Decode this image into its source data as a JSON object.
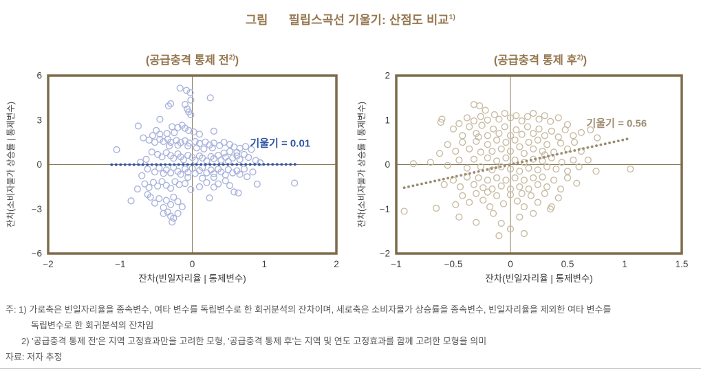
{
  "colors": {
    "title_brown": "#96774f",
    "frame": "#7d6b4a",
    "axis_line": "#8a795a",
    "tick_text": "#3d3d3d",
    "note_text": "#595959",
    "left_marker": "#aab3dc",
    "left_trend": "#2e54a6",
    "right_marker": "#c7bba3",
    "right_trend": "#9c8d72",
    "bottom_rule": "#c9c9c9"
  },
  "title": {
    "prefix": "그림",
    "text": "필립스곡선 기울기: 산점도 비교",
    "sup": "1)"
  },
  "notes": {
    "line1": "주: 1) 가로축은 빈일자리율을 종속변수, 여타 변수를 독립변수로 한 회귀분석의 잔차이며, 세로축은 소비자물가 상승률을 종속변수, 빈일자리율을 제외한 여타 변수를",
    "line2": "독립변수로 한 회귀분석의 잔차임",
    "line3": "2) '공급충격 통제 전'은 지역 고정효과만을 고려한 모형, '공급충격 통제 후'는 지역 및 연도 고정효과를 함께 고려한 모형을 의미",
    "line4": "자료: 저자 추정"
  },
  "chart_data": [
    {
      "type": "scatter",
      "title_parts": {
        "pre": "(공급충격 통제 전",
        "sup": "2)",
        "post": ")"
      },
      "xlabel": "잔차(빈일자리율 | 통제변수)",
      "ylabel": "잔차(소비자물가 상승률 | 통제변수)",
      "xlim": [
        -2,
        2
      ],
      "ylim": [
        -6,
        6
      ],
      "xticks": [
        [
          -2,
          "−2"
        ],
        [
          -1,
          "−1"
        ],
        [
          0,
          "0"
        ],
        [
          1,
          "1"
        ],
        [
          2,
          "2"
        ]
      ],
      "yticks": [
        [
          6,
          "6"
        ],
        [
          3,
          "3"
        ],
        [
          0,
          "0"
        ],
        [
          -3,
          "−3"
        ],
        [
          -6,
          "−6"
        ]
      ],
      "grid": false,
      "legend": null,
      "marker_color": "#aab3dc",
      "trendline": {
        "slope": 0.01,
        "slope_label": "기울기 = 0.01",
        "color": "#2e54a6",
        "x1": -1.12,
        "y1": -0.011,
        "x2": 1.43,
        "y2": 0.014,
        "label_x": 1.22,
        "label_y": 1.2
      },
      "points": [
        [
          -0.17,
          5.15
        ],
        [
          -0.08,
          5.0
        ],
        [
          -0.03,
          4.85
        ],
        [
          0.25,
          4.5
        ],
        [
          -0.02,
          4.35
        ],
        [
          -0.3,
          4.1
        ],
        [
          -0.33,
          3.95
        ],
        [
          -0.1,
          4.05
        ],
        [
          -0.07,
          3.75
        ],
        [
          -0.05,
          3.55
        ],
        [
          -0.02,
          3.35
        ],
        [
          -0.45,
          3.05
        ],
        [
          -0.75,
          2.6
        ],
        [
          -0.5,
          2.3
        ],
        [
          -0.28,
          2.55
        ],
        [
          -0.2,
          2.5
        ],
        [
          -0.14,
          2.65
        ],
        [
          -0.1,
          2.45
        ],
        [
          -0.05,
          2.3
        ],
        [
          0.02,
          2.2
        ],
        [
          0.3,
          2.25
        ],
        [
          -0.35,
          2.1
        ],
        [
          -0.45,
          2.05
        ],
        [
          -0.55,
          1.95
        ],
        [
          0.1,
          2.05
        ],
        [
          -0.25,
          2.15
        ],
        [
          -1.05,
          1.0
        ],
        [
          -0.68,
          1.8
        ],
        [
          -0.6,
          1.65
        ],
        [
          -0.52,
          1.5
        ],
        [
          -0.45,
          1.7
        ],
        [
          -0.4,
          1.55
        ],
        [
          -0.34,
          1.7
        ],
        [
          -0.3,
          1.5
        ],
        [
          -0.22,
          1.62
        ],
        [
          -0.16,
          1.48
        ],
        [
          -0.1,
          1.6
        ],
        [
          -0.04,
          1.45
        ],
        [
          0.04,
          1.55
        ],
        [
          0.1,
          1.42
        ],
        [
          0.18,
          1.52
        ],
        [
          0.24,
          1.32
        ],
        [
          0.3,
          1.45
        ],
        [
          0.38,
          1.28
        ],
        [
          0.44,
          1.5
        ],
        [
          0.52,
          1.35
        ],
        [
          0.58,
          1.18
        ],
        [
          0.66,
          1.1
        ],
        [
          0.74,
          1.22
        ],
        [
          0.82,
          1.02
        ],
        [
          -0.06,
          1.25
        ],
        [
          0.06,
          1.12
        ],
        [
          0.16,
          1.05
        ],
        [
          0.28,
          1.12
        ],
        [
          -0.2,
          1.3
        ],
        [
          -0.32,
          1.25
        ],
        [
          -0.56,
          0.85
        ],
        [
          -0.48,
          0.68
        ],
        [
          -0.42,
          0.52
        ],
        [
          -0.36,
          0.8
        ],
        [
          -0.3,
          0.6
        ],
        [
          -0.26,
          0.42
        ],
        [
          -0.2,
          0.72
        ],
        [
          -0.16,
          0.52
        ],
        [
          -0.12,
          0.32
        ],
        [
          -0.06,
          0.62
        ],
        [
          0.0,
          0.48
        ],
        [
          0.04,
          0.28
        ],
        [
          0.1,
          0.58
        ],
        [
          0.14,
          0.44
        ],
        [
          0.2,
          0.24
        ],
        [
          0.26,
          0.54
        ],
        [
          0.3,
          0.4
        ],
        [
          0.36,
          0.62
        ],
        [
          0.4,
          0.3
        ],
        [
          0.46,
          0.5
        ],
        [
          0.5,
          0.22
        ],
        [
          0.56,
          0.44
        ],
        [
          0.62,
          0.58
        ],
        [
          0.66,
          0.34
        ],
        [
          0.44,
          0.78
        ],
        [
          0.52,
          0.88
        ],
        [
          0.62,
          0.82
        ],
        [
          0.72,
          0.68
        ],
        [
          0.78,
          0.48
        ],
        [
          0.88,
          0.28
        ],
        [
          -0.64,
          0.35
        ],
        [
          -0.72,
          0.15
        ],
        [
          0.94,
          0.12
        ],
        [
          -0.62,
          -0.3
        ],
        [
          -0.52,
          -0.5
        ],
        [
          -0.46,
          -0.24
        ],
        [
          -0.4,
          -0.6
        ],
        [
          -0.36,
          -0.36
        ],
        [
          -0.3,
          -0.56
        ],
        [
          -0.26,
          -0.2
        ],
        [
          -0.2,
          -0.46
        ],
        [
          -0.16,
          -0.66
        ],
        [
          -0.1,
          -0.3
        ],
        [
          -0.06,
          -0.52
        ],
        [
          0.0,
          -0.26
        ],
        [
          0.04,
          -0.6
        ],
        [
          0.1,
          -0.4
        ],
        [
          0.14,
          -0.2
        ],
        [
          0.2,
          -0.56
        ],
        [
          0.26,
          -0.36
        ],
        [
          0.3,
          -0.62
        ],
        [
          0.36,
          -0.3
        ],
        [
          0.4,
          -0.5
        ],
        [
          0.46,
          -0.7
        ],
        [
          0.5,
          -0.34
        ],
        [
          0.56,
          -0.56
        ],
        [
          0.62,
          -0.42
        ],
        [
          0.66,
          -0.66
        ],
        [
          0.72,
          -0.3
        ],
        [
          0.76,
          -0.82
        ],
        [
          0.3,
          -0.86
        ],
        [
          0.14,
          -0.92
        ],
        [
          -0.06,
          -0.86
        ],
        [
          0.84,
          -0.5
        ],
        [
          -0.7,
          -0.75
        ],
        [
          -0.66,
          -1.3
        ],
        [
          -0.6,
          -1.55
        ],
        [
          -0.54,
          -1.2
        ],
        [
          -0.48,
          -1.45
        ],
        [
          -0.42,
          -1.15
        ],
        [
          -0.36,
          -1.4
        ],
        [
          -0.3,
          -1.6
        ],
        [
          -0.24,
          -1.15
        ],
        [
          -0.18,
          -1.35
        ],
        [
          -0.1,
          -1.28
        ],
        [
          -0.02,
          -1.68
        ],
        [
          0.1,
          -1.5
        ],
        [
          0.2,
          -1.22
        ],
        [
          0.3,
          -1.52
        ],
        [
          0.36,
          -1.3
        ],
        [
          0.46,
          -1.1
        ],
        [
          0.52,
          -1.42
        ],
        [
          0.58,
          -1.85
        ],
        [
          0.64,
          -1.92
        ],
        [
          0.9,
          -1.32
        ],
        [
          1.42,
          -1.25
        ],
        [
          -0.76,
          -1.65
        ],
        [
          -0.85,
          -2.45
        ],
        [
          -0.58,
          -2.2
        ],
        [
          -0.52,
          -2.6
        ],
        [
          -0.46,
          -2.3
        ],
        [
          -0.4,
          -2.9
        ],
        [
          -0.36,
          -2.42
        ],
        [
          -0.3,
          -2.7
        ],
        [
          -0.26,
          -2.2
        ],
        [
          -0.2,
          -2.5
        ],
        [
          -0.14,
          -2.85
        ],
        [
          0.24,
          -2.25
        ],
        [
          -0.62,
          -2.02
        ],
        [
          -0.4,
          -3.3
        ],
        [
          -0.34,
          -3.2
        ],
        [
          -0.3,
          -3.48
        ],
        [
          -0.26,
          -3.62
        ],
        [
          -0.28,
          -3.88
        ],
        [
          -0.2,
          -3.3
        ]
      ]
    },
    {
      "type": "scatter",
      "title_parts": {
        "pre": "(공급충격 통제 후",
        "sup": "2)",
        "post": ")"
      },
      "xlabel": "잔차(빈일자리율 | 통제변수)",
      "ylabel": "잔차(소비자물가 상승률 | 통제변수)",
      "xlim": [
        -1,
        1.5
      ],
      "ylim": [
        -2,
        2
      ],
      "xticks": [
        [
          -1,
          "−1"
        ],
        [
          -0.5,
          "−0.5"
        ],
        [
          0,
          "0"
        ],
        [
          0.5,
          "0.5"
        ],
        [
          1,
          "1"
        ],
        [
          1.5,
          "1.5"
        ]
      ],
      "yticks": [
        [
          2,
          "2"
        ],
        [
          1,
          "1"
        ],
        [
          0,
          "0"
        ],
        [
          -1,
          "−1"
        ],
        [
          -2,
          "−2"
        ]
      ],
      "grid": false,
      "legend": null,
      "marker_color": "#c7bba3",
      "trendline": {
        "slope": 0.56,
        "slope_label": "기울기 = 0.56",
        "color": "#9c8d72",
        "x1": -0.93,
        "y1": -0.52,
        "x2": 1.05,
        "y2": 0.59,
        "label_x": 0.93,
        "label_y": 0.85
      },
      "points": [
        [
          -0.32,
          1.35
        ],
        [
          -0.27,
          1.32
        ],
        [
          -0.22,
          1.22
        ],
        [
          -0.6,
          1.02
        ],
        [
          -0.61,
          0.95
        ],
        [
          -0.38,
          1.05
        ],
        [
          -0.32,
          0.98
        ],
        [
          -0.26,
          1.08
        ],
        [
          -0.2,
          1.0
        ],
        [
          -0.14,
          1.12
        ],
        [
          -0.1,
          1.02
        ],
        [
          -0.05,
          1.15
        ],
        [
          0.0,
          1.05
        ],
        [
          0.05,
          1.1
        ],
        [
          0.1,
          0.98
        ],
        [
          0.15,
          1.08
        ],
        [
          0.2,
          1.15
        ],
        [
          0.25,
          1.02
        ],
        [
          0.3,
          1.1
        ],
        [
          0.35,
          0.97
        ],
        [
          0.42,
          1.05
        ],
        [
          -0.45,
          0.92
        ],
        [
          0.5,
          0.9
        ],
        [
          -0.5,
          0.8
        ],
        [
          -0.42,
          0.65
        ],
        [
          -0.36,
          0.85
        ],
        [
          -0.3,
          0.7
        ],
        [
          -0.25,
          0.88
        ],
        [
          -0.2,
          0.65
        ],
        [
          -0.15,
          0.8
        ],
        [
          -0.1,
          0.7
        ],
        [
          -0.05,
          0.85
        ],
        [
          0.0,
          0.65
        ],
        [
          0.05,
          0.78
        ],
        [
          0.1,
          0.68
        ],
        [
          0.15,
          0.85
        ],
        [
          0.2,
          0.7
        ],
        [
          0.25,
          0.8
        ],
        [
          0.3,
          0.65
        ],
        [
          0.36,
          0.75
        ],
        [
          0.42,
          0.62
        ],
        [
          0.48,
          0.78
        ],
        [
          0.55,
          0.65
        ],
        [
          0.62,
          0.72
        ],
        [
          0.7,
          0.78
        ],
        [
          -0.28,
          0.62
        ],
        [
          0.76,
          0.6
        ],
        [
          -0.55,
          0.45
        ],
        [
          -0.48,
          0.3
        ],
        [
          -0.42,
          0.5
        ],
        [
          -0.36,
          0.35
        ],
        [
          -0.3,
          0.52
        ],
        [
          -0.26,
          0.28
        ],
        [
          -0.2,
          0.45
        ],
        [
          -0.16,
          0.3
        ],
        [
          -0.12,
          0.55
        ],
        [
          -0.08,
          0.35
        ],
        [
          -0.04,
          0.5
        ],
        [
          0.0,
          0.3
        ],
        [
          0.04,
          0.55
        ],
        [
          0.08,
          0.4
        ],
        [
          0.12,
          0.25
        ],
        [
          0.16,
          0.5
        ],
        [
          0.2,
          0.35
        ],
        [
          0.24,
          0.55
        ],
        [
          0.28,
          0.3
        ],
        [
          0.32,
          0.45
        ],
        [
          0.38,
          0.28
        ],
        [
          0.44,
          0.48
        ],
        [
          0.5,
          0.35
        ],
        [
          0.56,
          0.5
        ],
        [
          0.62,
          0.3
        ],
        [
          0.3,
          0.22
        ],
        [
          -0.62,
          0.25
        ],
        [
          -0.85,
          0.02
        ],
        [
          -0.7,
          0.05
        ],
        [
          -0.55,
          -0.02
        ],
        [
          -0.45,
          0.1
        ],
        [
          -0.38,
          -0.08
        ],
        [
          -0.32,
          0.12
        ],
        [
          -0.26,
          -0.05
        ],
        [
          -0.2,
          0.15
        ],
        [
          -0.16,
          -0.12
        ],
        [
          -0.12,
          0.08
        ],
        [
          -0.08,
          -0.05
        ],
        [
          -0.04,
          0.15
        ],
        [
          0.0,
          -0.1
        ],
        [
          0.04,
          0.1
        ],
        [
          0.08,
          -0.15
        ],
        [
          0.12,
          0.05
        ],
        [
          0.16,
          -0.08
        ],
        [
          0.2,
          0.12
        ],
        [
          0.24,
          -0.12
        ],
        [
          0.28,
          0.08
        ],
        [
          0.32,
          -0.05
        ],
        [
          0.36,
          0.15
        ],
        [
          0.4,
          -0.1
        ],
        [
          0.45,
          0.05
        ],
        [
          0.5,
          -0.15
        ],
        [
          0.55,
          0.1
        ],
        [
          0.6,
          -0.05
        ],
        [
          0.68,
          0.1
        ],
        [
          1.05,
          -0.1
        ],
        [
          0.75,
          -0.15
        ],
        [
          -0.5,
          -0.35
        ],
        [
          -0.44,
          -0.5
        ],
        [
          -0.38,
          -0.28
        ],
        [
          -0.32,
          -0.45
        ],
        [
          -0.28,
          -0.3
        ],
        [
          -0.24,
          -0.52
        ],
        [
          -0.2,
          -0.35
        ],
        [
          -0.16,
          -0.55
        ],
        [
          -0.12,
          -0.3
        ],
        [
          -0.08,
          -0.48
        ],
        [
          -0.04,
          -0.35
        ],
        [
          0.0,
          -0.55
        ],
        [
          0.04,
          -0.3
        ],
        [
          0.08,
          -0.5
        ],
        [
          0.12,
          -0.35
        ],
        [
          0.16,
          -0.55
        ],
        [
          0.2,
          -0.3
        ],
        [
          0.24,
          -0.45
        ],
        [
          0.28,
          -0.28
        ],
        [
          0.32,
          -0.5
        ],
        [
          0.38,
          -0.35
        ],
        [
          0.44,
          -0.55
        ],
        [
          0.5,
          -0.3
        ],
        [
          -0.58,
          -0.45
        ],
        [
          0.58,
          -0.42
        ],
        [
          -0.42,
          -0.7
        ],
        [
          -0.36,
          -0.85
        ],
        [
          -0.3,
          -0.65
        ],
        [
          -0.24,
          -0.8
        ],
        [
          -0.18,
          -0.95
        ],
        [
          -0.12,
          -0.7
        ],
        [
          -0.06,
          -0.88
        ],
        [
          0.0,
          -0.68
        ],
        [
          0.06,
          -0.82
        ],
        [
          0.12,
          -0.95
        ],
        [
          0.18,
          -0.7
        ],
        [
          0.24,
          -0.85
        ],
        [
          0.3,
          -0.65
        ],
        [
          0.36,
          -0.95
        ],
        [
          0.42,
          -0.75
        ],
        [
          -0.48,
          -0.9
        ],
        [
          0.1,
          -0.65
        ],
        [
          -0.2,
          -0.62
        ],
        [
          -0.93,
          -1.05
        ],
        [
          -0.65,
          -0.98
        ],
        [
          -0.45,
          -1.18
        ],
        [
          -0.3,
          -1.3
        ],
        [
          -0.15,
          -1.1
        ],
        [
          -0.08,
          -1.32
        ],
        [
          0.0,
          -1.45
        ],
        [
          0.08,
          -1.18
        ],
        [
          0.12,
          -1.55
        ],
        [
          0.2,
          -1.1
        ],
        [
          0.35,
          -1.0
        ],
        [
          -0.1,
          -1.6
        ]
      ]
    }
  ]
}
